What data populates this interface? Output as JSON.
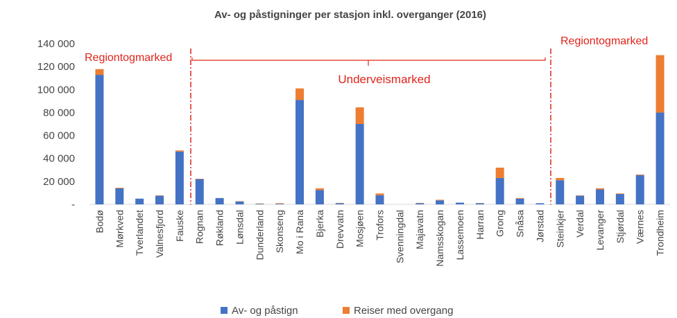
{
  "chart_data": {
    "type": "stacked_bar",
    "title": "Av- og påstigninger per stasjon inkl. overganger (2016)",
    "categories": [
      "Bodø",
      "Mørkved",
      "Tverlandet",
      "Valnesfjord",
      "Fauske",
      "Rognan",
      "Røkland",
      "Lønsdal",
      "Dunderland",
      "Skonseng",
      "Mo i Rana",
      "Bjerka",
      "Drevvatn",
      "Mosjøen",
      "Trofors",
      "Svenningdal",
      "Majavatn",
      "Namsskogan",
      "Lassemoen",
      "Harran",
      "Grong",
      "Snåsa",
      "Jørstad",
      "Steinkjer",
      "Verdal",
      "Levanger",
      "Stjørdal",
      "Værnes",
      "Trondheim"
    ],
    "series": [
      {
        "name": "Av- og påstign",
        "color": "#4472c4",
        "values": [
          112800,
          14000,
          5000,
          7500,
          46000,
          22000,
          5500,
          2500,
          500,
          500,
          91000,
          12500,
          1000,
          70000,
          8000,
          0,
          1000,
          3500,
          1500,
          1000,
          23000,
          5000,
          1000,
          21000,
          7500,
          13000,
          9000,
          25500,
          80000
        ]
      },
      {
        "name": "Reiser med overgang",
        "color": "#ed7d31",
        "values": [
          5000,
          500,
          0,
          300,
          1000,
          300,
          0,
          300,
          300,
          500,
          10000,
          1500,
          300,
          14500,
          1500,
          0,
          300,
          500,
          0,
          200,
          9000,
          500,
          0,
          2000,
          300,
          1000,
          500,
          500,
          50000
        ]
      }
    ],
    "ylim": [
      0,
      140000
    ],
    "yticks": [
      {
        "value": 0,
        "label": "-"
      },
      {
        "value": 20000,
        "label": "20 000"
      },
      {
        "value": 40000,
        "label": "40 000"
      },
      {
        "value": 60000,
        "label": "60 000"
      },
      {
        "value": 80000,
        "label": "80 000"
      },
      {
        "value": 100000,
        "label": "100 000"
      },
      {
        "value": 120000,
        "label": "120 000"
      },
      {
        "value": 140000,
        "label": "140 000"
      }
    ],
    "annotations": [
      "Regiontogmarked",
      "Underveismarked",
      "Regiontogmarked"
    ],
    "legend": "bottom"
  }
}
